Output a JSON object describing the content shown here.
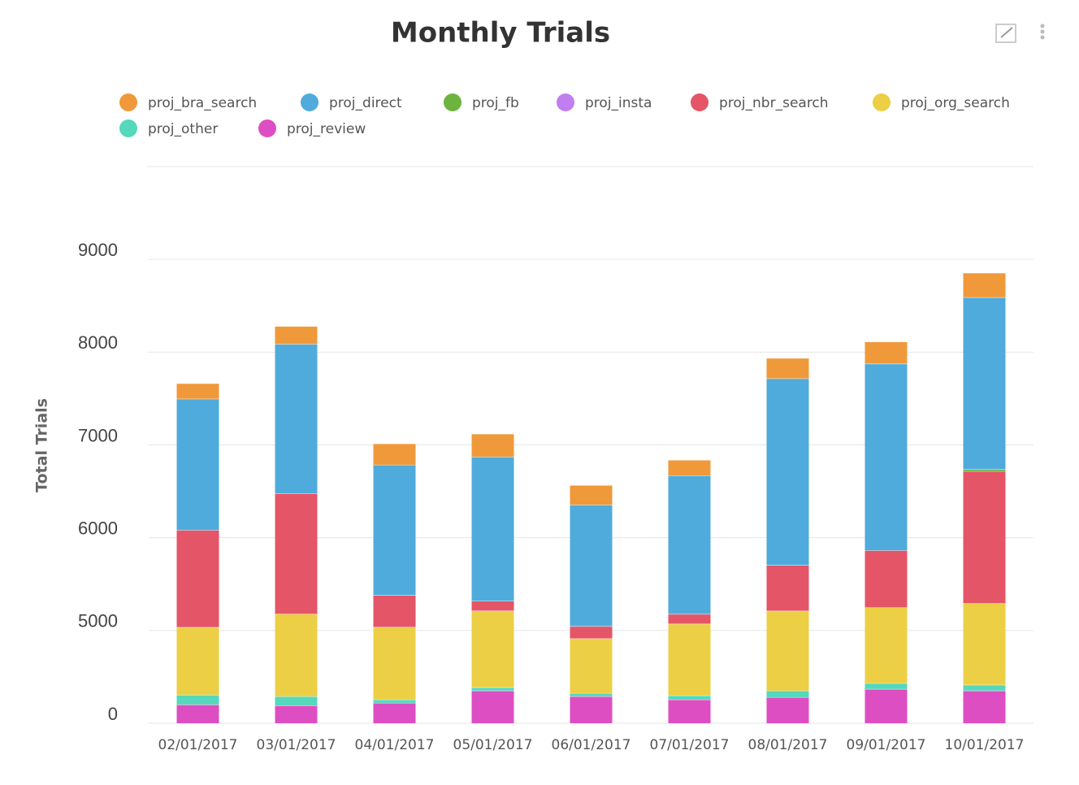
{
  "chart_data": {
    "type": "stacked_bar",
    "title": "Monthly Trials",
    "y_label": "Total Trials",
    "categories": [
      "02/01/2017",
      "03/01/2017",
      "04/01/2017",
      "05/01/2017",
      "06/01/2017",
      "07/01/2017",
      "08/01/2017",
      "09/01/2017",
      "10/01/2017"
    ],
    "series": [
      {
        "name": "proj_bra_search",
        "color": "#f0993a",
        "values": [
          167,
          193,
          228,
          246,
          211,
          167,
          220,
          237,
          264
        ]
      },
      {
        "name": "proj_direct",
        "color": "#4fabdc",
        "values": [
          1415,
          1608,
          1406,
          1555,
          1309,
          1494,
          2012,
          2012,
          1854
        ]
      },
      {
        "name": "proj_fb",
        "color": "#6db33f",
        "values": [
          0,
          0,
          0,
          0,
          0,
          0,
          0,
          0,
          20
        ]
      },
      {
        "name": "proj_insta",
        "color": "#c07ef0",
        "values": [
          0,
          0,
          0,
          0,
          0,
          0,
          0,
          0,
          0
        ]
      },
      {
        "name": "proj_nbr_search",
        "color": "#e45567",
        "values": [
          1046,
          1301,
          343,
          105,
          132,
          105,
          492,
          615,
          1424
        ]
      },
      {
        "name": "proj_org_search",
        "color": "#eccf44",
        "values": [
          729,
          888,
          782,
          826,
          589,
          773,
          861,
          817,
          879
        ]
      },
      {
        "name": "proj_other",
        "color": "#55d8bb",
        "values": [
          105,
          97,
          35,
          35,
          35,
          44,
          70,
          62,
          62
        ]
      },
      {
        "name": "proj_review",
        "color": "#dd4ec2",
        "values": [
          202,
          193,
          220,
          352,
          290,
          255,
          281,
          369,
          352
        ]
      }
    ],
    "ylim": [
      4000,
      10000
    ],
    "axis_break": true,
    "yticks": [
      0,
      5000,
      6000,
      7000,
      8000,
      9000
    ],
    "grid": true
  }
}
